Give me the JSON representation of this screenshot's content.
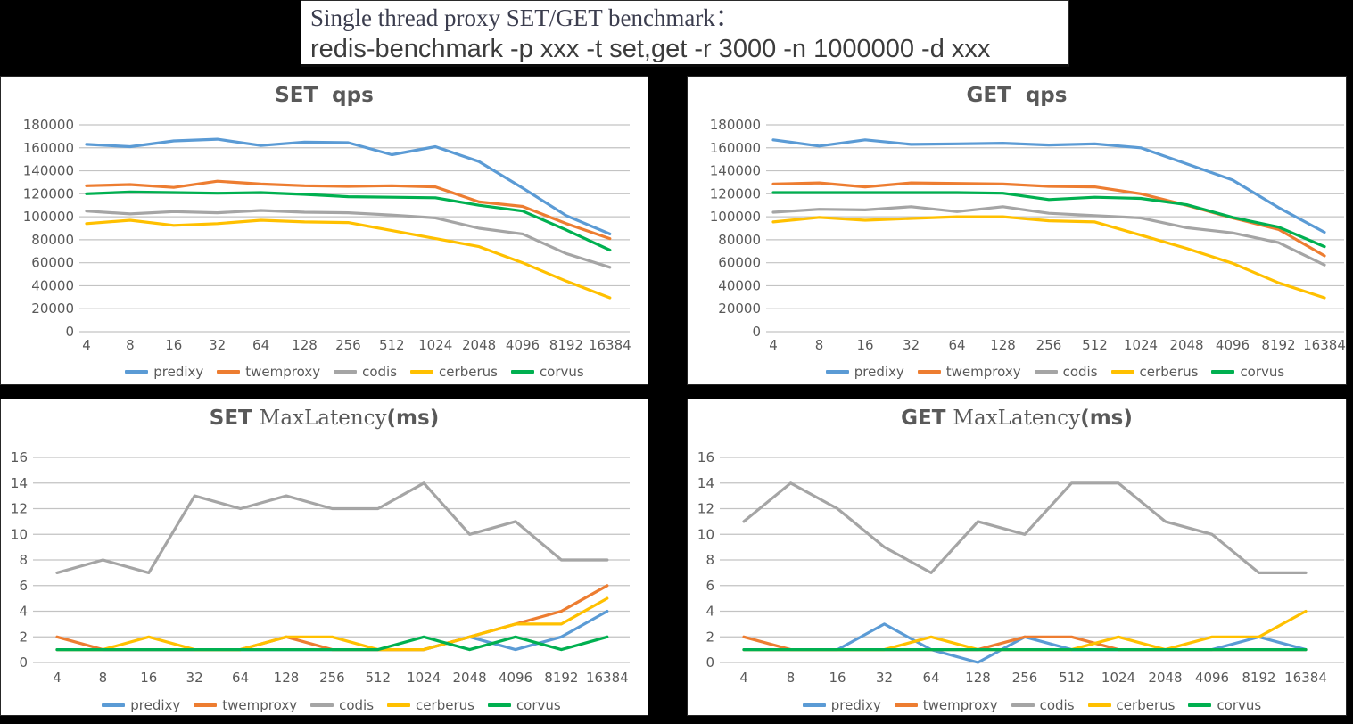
{
  "header": {
    "title_line1": "Single thread proxy SET/GET benchmark：",
    "title_line2": "redis-benchmark -p xxx -t set,get -r 3000 -n 1000000 -d xxx"
  },
  "colors": {
    "predixy": "#5B9BD5",
    "twemproxy": "#ED7D31",
    "codis": "#A5A5A5",
    "cerberus": "#FFC000",
    "corvus": "#00B050",
    "gridline": "#C3C3C3",
    "axis_text": "#595959"
  },
  "legend_labels": [
    "predixy",
    "twemproxy",
    "codis",
    "cerberus",
    "corvus"
  ],
  "chart_data": [
    {
      "id": "set-qps",
      "type": "line",
      "title": [
        {
          "text": "SET  qps",
          "style": "bold"
        }
      ],
      "xlabel": "",
      "ylabel": "",
      "ylim": [
        0,
        180000
      ],
      "ystep": 20000,
      "grid": true,
      "legend_position": "bottom",
      "categories": [
        "4",
        "8",
        "16",
        "32",
        "64",
        "128",
        "256",
        "512",
        "1024",
        "2048",
        "4096",
        "8192",
        "16384"
      ],
      "series": [
        {
          "name": "predixy",
          "values": [
            163000,
            161000,
            166000,
            167500,
            162000,
            165000,
            164500,
            154000,
            161000,
            148000,
            125000,
            101000,
            85000
          ]
        },
        {
          "name": "twemproxy",
          "values": [
            127000,
            128000,
            125500,
            131000,
            128500,
            127000,
            126500,
            127000,
            126000,
            113000,
            109000,
            94000,
            81000
          ]
        },
        {
          "name": "codis",
          "values": [
            105000,
            102500,
            104500,
            103500,
            105500,
            104000,
            103500,
            101500,
            99000,
            90000,
            85000,
            68000,
            56000
          ]
        },
        {
          "name": "cerberus",
          "values": [
            94000,
            97000,
            92500,
            94000,
            97000,
            95500,
            95000,
            88000,
            81000,
            74000,
            60000,
            44000,
            29500
          ]
        },
        {
          "name": "corvus",
          "values": [
            120000,
            121500,
            121000,
            120500,
            121000,
            119500,
            117500,
            117000,
            116500,
            110000,
            105000,
            88500,
            71000
          ]
        }
      ]
    },
    {
      "id": "get-qps",
      "type": "line",
      "title": [
        {
          "text": "GET  qps",
          "style": "bold"
        }
      ],
      "xlabel": "",
      "ylabel": "",
      "ylim": [
        0,
        180000
      ],
      "ystep": 20000,
      "grid": true,
      "legend_position": "bottom",
      "categories": [
        "4",
        "8",
        "16",
        "32",
        "64",
        "128",
        "256",
        "512",
        "1024",
        "2048",
        "4096",
        "8192",
        "16384"
      ],
      "series": [
        {
          "name": "predixy",
          "values": [
            167000,
            161500,
            167000,
            163000,
            163500,
            164000,
            162500,
            163500,
            160000,
            146000,
            132000,
            108000,
            86500
          ]
        },
        {
          "name": "twemproxy",
          "values": [
            128500,
            129500,
            126000,
            129500,
            129000,
            128500,
            126500,
            126000,
            120000,
            110000,
            99000,
            89000,
            66000
          ]
        },
        {
          "name": "codis",
          "values": [
            104000,
            106500,
            106000,
            108800,
            104500,
            108800,
            103000,
            101000,
            99000,
            90500,
            86000,
            77500,
            58000
          ]
        },
        {
          "name": "cerberus",
          "values": [
            95500,
            99500,
            97000,
            98500,
            100000,
            100000,
            96500,
            95500,
            84000,
            72500,
            59500,
            42500,
            29500
          ]
        },
        {
          "name": "corvus",
          "values": [
            121000,
            121000,
            121000,
            121000,
            121000,
            120500,
            115000,
            117000,
            116000,
            110500,
            99500,
            91000,
            74000
          ]
        }
      ]
    },
    {
      "id": "set-maxlatency",
      "type": "line",
      "title": [
        {
          "text": "SET ",
          "style": "bold"
        },
        {
          "text": "MaxLatency",
          "style": "serif"
        },
        {
          "text": "(ms)",
          "style": "bold"
        }
      ],
      "xlabel": "",
      "ylabel": "",
      "ylim": [
        0,
        16
      ],
      "ystep": 2,
      "grid": true,
      "legend_position": "bottom",
      "categories": [
        "4",
        "8",
        "16",
        "32",
        "64",
        "128",
        "256",
        "512",
        "1024",
        "2048",
        "4096",
        "8192",
        "16384"
      ],
      "series": [
        {
          "name": "predixy",
          "values": [
            1,
            1,
            1,
            1,
            1,
            1,
            1,
            1,
            1,
            2,
            1,
            2,
            4
          ]
        },
        {
          "name": "twemproxy",
          "values": [
            2,
            1,
            1,
            1,
            1,
            2,
            1,
            1,
            1,
            2,
            3,
            4,
            6
          ]
        },
        {
          "name": "codis",
          "values": [
            7,
            8,
            7,
            13,
            12,
            13,
            12,
            12,
            14,
            10,
            11,
            8,
            8
          ]
        },
        {
          "name": "cerberus",
          "values": [
            1,
            1,
            2,
            1,
            1,
            2,
            2,
            1,
            1,
            2,
            3,
            3,
            5
          ]
        },
        {
          "name": "corvus",
          "values": [
            1,
            1,
            1,
            1,
            1,
            1,
            1,
            1,
            2,
            1,
            2,
            1,
            2
          ]
        }
      ]
    },
    {
      "id": "get-maxlatency",
      "type": "line",
      "title": [
        {
          "text": "GET ",
          "style": "bold"
        },
        {
          "text": "MaxLatency",
          "style": "serif"
        },
        {
          "text": "(ms)",
          "style": "bold"
        }
      ],
      "xlabel": "",
      "ylabel": "",
      "ylim": [
        0,
        16
      ],
      "ystep": 2,
      "grid": true,
      "legend_position": "bottom",
      "categories": [
        "4",
        "8",
        "16",
        "32",
        "64",
        "128",
        "256",
        "512",
        "1024",
        "2048",
        "4096",
        "8192",
        "16384"
      ],
      "series": [
        {
          "name": "predixy",
          "values": [
            1,
            1,
            1,
            3,
            1,
            0,
            2,
            1,
            1,
            1,
            1,
            2,
            1
          ]
        },
        {
          "name": "twemproxy",
          "values": [
            2,
            1,
            1,
            1,
            1,
            1,
            2,
            2,
            1,
            1,
            1,
            1,
            1
          ]
        },
        {
          "name": "codis",
          "values": [
            11,
            14,
            12,
            9,
            7,
            11,
            10,
            14,
            14,
            11,
            10,
            7,
            7
          ]
        },
        {
          "name": "cerberus",
          "values": [
            1,
            1,
            1,
            1,
            2,
            1,
            1,
            1,
            2,
            1,
            2,
            2,
            4
          ]
        },
        {
          "name": "corvus",
          "values": [
            1,
            1,
            1,
            1,
            1,
            1,
            1,
            1,
            1,
            1,
            1,
            1,
            1
          ]
        }
      ]
    }
  ]
}
